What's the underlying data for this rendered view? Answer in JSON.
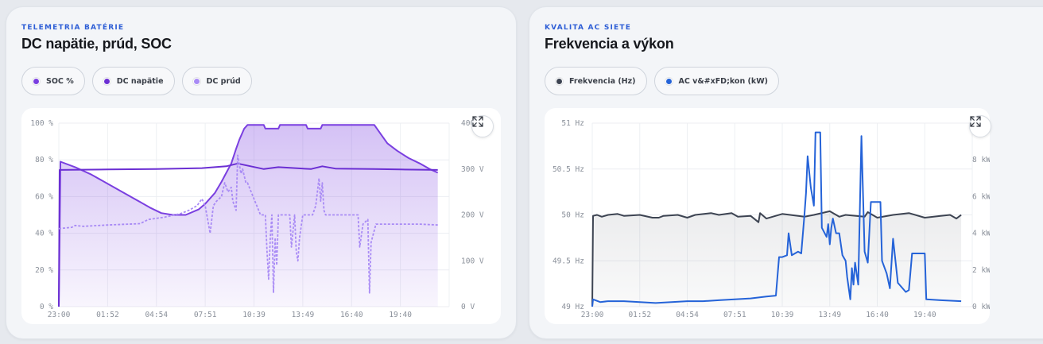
{
  "cards": [
    {
      "eyebrow": "TELEMETRIA BATÉRIE",
      "title": "DC napätie, prúd, SOC",
      "legend": [
        {
          "label": "SOC %",
          "color": "#7a3fe0"
        },
        {
          "label": "DC napätie",
          "color": "#6b2fd3"
        },
        {
          "label": "DC prúd",
          "color": "#a98bf5"
        }
      ]
    },
    {
      "eyebrow": "KVALITA AC SIETE",
      "title": "Frekvencia a výkon",
      "legend": [
        {
          "label": "Frekvencia (Hz)",
          "color": "#3d4452"
        },
        {
          "label": "AC v&#xFD;kon (kW)",
          "color": "#2563d8"
        }
      ]
    }
  ],
  "expand_icon": "expand-icon",
  "chart_data": [
    {
      "type": "line",
      "x_ticks": [
        "23:00",
        "01:52",
        "04:54",
        "07:51",
        "10:39",
        "13:49",
        "16:40",
        "19:40"
      ],
      "y_left_ticks": [
        "0 %",
        "20 %",
        "40 %",
        "60 %",
        "80 %",
        "100 %"
      ],
      "y_right_ticks": [
        "0 V",
        "100 V",
        "200 V",
        "300 V",
        "400 V"
      ],
      "ylim_left": [
        0,
        100
      ],
      "ylim_right": [
        0,
        400
      ],
      "xlim": [
        0,
        24
      ],
      "series": [
        {
          "name": "SOC %",
          "axis": "left",
          "style": "solid-fill",
          "color": "#7a3fe0",
          "points": [
            [
              0,
              0
            ],
            [
              0.1,
              79
            ],
            [
              1,
              76
            ],
            [
              2,
              72
            ],
            [
              3,
              67
            ],
            [
              4,
              62
            ],
            [
              5,
              57
            ],
            [
              5.6,
              54
            ],
            [
              6.3,
              51
            ],
            [
              7,
              50
            ],
            [
              7.8,
              50
            ],
            [
              8.6,
              53
            ],
            [
              9,
              56
            ],
            [
              9.6,
              62
            ],
            [
              10,
              68
            ],
            [
              10.3,
              73
            ],
            [
              10.6,
              78
            ],
            [
              10.9,
              86
            ],
            [
              11.1,
              91
            ],
            [
              11.4,
              97
            ],
            [
              11.6,
              99
            ],
            [
              12.6,
              99
            ],
            [
              12.7,
              97
            ],
            [
              13.5,
              97
            ],
            [
              13.6,
              99
            ],
            [
              15.2,
              99
            ],
            [
              15.3,
              97
            ],
            [
              16.1,
              97
            ],
            [
              16.2,
              99
            ],
            [
              19.4,
              99
            ],
            [
              19.8,
              94
            ],
            [
              20.2,
              89
            ],
            [
              20.8,
              85
            ],
            [
              21.5,
              81
            ],
            [
              22.2,
              78
            ],
            [
              22.8,
              75
            ],
            [
              23.3,
              73
            ]
          ]
        },
        {
          "name": "DC napätie",
          "axis": "right",
          "style": "solid",
          "color": "#6b2fd3",
          "points": [
            [
              0,
              0
            ],
            [
              0.05,
              298
            ],
            [
              3,
              299
            ],
            [
              6,
              300
            ],
            [
              8.8,
              302
            ],
            [
              10.3,
              306
            ],
            [
              11,
              312
            ],
            [
              12.6,
              300
            ],
            [
              13.5,
              304
            ],
            [
              15.5,
              300
            ],
            [
              16.2,
              306
            ],
            [
              17,
              301
            ],
            [
              19.4,
              300
            ],
            [
              21,
              299
            ],
            [
              23.3,
              298
            ]
          ]
        },
        {
          "name": "DC prúd",
          "axis": "right",
          "style": "dashed",
          "color": "#a98bf5",
          "points": [
            [
              0,
              170
            ],
            [
              0.8,
              173
            ],
            [
              1,
              177
            ],
            [
              1.5,
              175
            ],
            [
              3,
              178
            ],
            [
              5,
              181
            ],
            [
              5.5,
              190
            ],
            [
              6.5,
              195
            ],
            [
              7.5,
              203
            ],
            [
              8,
              210
            ],
            [
              8.5,
              220
            ],
            [
              8.8,
              235
            ],
            [
              9,
              220
            ],
            [
              9.3,
              160
            ],
            [
              9.5,
              220
            ],
            [
              9.7,
              230
            ],
            [
              10,
              240
            ],
            [
              10.2,
              270
            ],
            [
              10.4,
              250
            ],
            [
              10.6,
              260
            ],
            [
              10.7,
              230
            ],
            [
              10.9,
              210
            ],
            [
              11,
              330
            ],
            [
              11.2,
              290
            ],
            [
              11.3,
              300
            ],
            [
              11.5,
              270
            ],
            [
              11.6,
              270
            ],
            [
              12.4,
              200
            ],
            [
              12.7,
              200
            ],
            [
              12.8,
              120
            ],
            [
              12.9,
              60
            ],
            [
              13,
              150
            ],
            [
              13.1,
              200
            ],
            [
              13.2,
              30
            ],
            [
              13.3,
              150
            ],
            [
              13.4,
              90
            ],
            [
              13.5,
              200
            ],
            [
              14,
              200
            ],
            [
              14.2,
              200
            ],
            [
              14.3,
              130
            ],
            [
              14.5,
              200
            ],
            [
              14.6,
              120
            ],
            [
              14.7,
              100
            ],
            [
              14.8,
              150
            ],
            [
              15,
              200
            ],
            [
              15.6,
              200
            ],
            [
              15.8,
              220
            ],
            [
              16,
              280
            ],
            [
              16.1,
              230
            ],
            [
              16.2,
              270
            ],
            [
              16.3,
              210
            ],
            [
              16.4,
              200
            ],
            [
              18,
              200
            ],
            [
              18.4,
              200
            ],
            [
              18.5,
              130
            ],
            [
              18.7,
              180
            ],
            [
              19,
              190
            ],
            [
              19.1,
              30
            ],
            [
              19.2,
              140
            ],
            [
              19.5,
              180
            ],
            [
              21,
              180
            ],
            [
              22.2,
              180
            ],
            [
              23.3,
              178
            ]
          ]
        }
      ]
    },
    {
      "type": "line",
      "x_ticks": [
        "23:00",
        "01:52",
        "04:54",
        "07:51",
        "10:39",
        "13:49",
        "16:40",
        "19:40"
      ],
      "y_left_ticks": [
        "49 Hz",
        "49.5 Hz",
        "50 Hz",
        "50.5 Hz",
        "51 Hz"
      ],
      "y_right_ticks": [
        "0 kW",
        "2 kW",
        "4 kW",
        "6 kW",
        "8 kW",
        "10 kW"
      ],
      "ylim_left": [
        49,
        51
      ],
      "ylim_right": [
        0,
        10
      ],
      "xlim": [
        0,
        24
      ],
      "series": [
        {
          "name": "Frekvencia (Hz)",
          "axis": "left",
          "style": "solid-fill",
          "color": "#3d4452",
          "points": [
            [
              0,
              49
            ],
            [
              0.05,
              49.99
            ],
            [
              0.3,
              50
            ],
            [
              0.6,
              49.98
            ],
            [
              1,
              50
            ],
            [
              1.6,
              50.01
            ],
            [
              2,
              49.99
            ],
            [
              3,
              50
            ],
            [
              3.8,
              49.97
            ],
            [
              4.2,
              49.97
            ],
            [
              4.5,
              49.99
            ],
            [
              5.4,
              50
            ],
            [
              6,
              49.97
            ],
            [
              6.5,
              50
            ],
            [
              7.5,
              50.02
            ],
            [
              8,
              50
            ],
            [
              8.8,
              50.02
            ],
            [
              9.2,
              49.98
            ],
            [
              10,
              49.99
            ],
            [
              10.5,
              49.92
            ],
            [
              10.6,
              50.02
            ],
            [
              11,
              49.96
            ],
            [
              12,
              50.01
            ],
            [
              12.5,
              50
            ],
            [
              13.4,
              49.98
            ],
            [
              14,
              50
            ],
            [
              15,
              50.04
            ],
            [
              15.6,
              49.98
            ],
            [
              16,
              50
            ],
            [
              17.2,
              49.98
            ],
            [
              17.4,
              50.03
            ],
            [
              18,
              49.97
            ],
            [
              19,
              50
            ],
            [
              20,
              50.02
            ],
            [
              21,
              49.97
            ],
            [
              22,
              49.99
            ],
            [
              22.6,
              50
            ],
            [
              23,
              49.96
            ],
            [
              23.3,
              50
            ]
          ]
        },
        {
          "name": "AC v&#xFD;kon (kW)",
          "axis": "right",
          "style": "solid",
          "color": "#2563d8",
          "points": [
            [
              0,
              0
            ],
            [
              0.05,
              0.4
            ],
            [
              0.5,
              0.25
            ],
            [
              1,
              0.3
            ],
            [
              2,
              0.3
            ],
            [
              3,
              0.25
            ],
            [
              4,
              0.2
            ],
            [
              5,
              0.25
            ],
            [
              6,
              0.3
            ],
            [
              7,
              0.3
            ],
            [
              8,
              0.35
            ],
            [
              9,
              0.4
            ],
            [
              10,
              0.45
            ],
            [
              11,
              0.55
            ],
            [
              11.6,
              0.6
            ],
            [
              11.8,
              2.7
            ],
            [
              12,
              2.7
            ],
            [
              12.3,
              2.8
            ],
            [
              12.4,
              4
            ],
            [
              12.6,
              2.8
            ],
            [
              13,
              3
            ],
            [
              13.2,
              2.9
            ],
            [
              13.4,
              5
            ],
            [
              13.5,
              6.2
            ],
            [
              13.6,
              8.2
            ],
            [
              13.8,
              6.5
            ],
            [
              14,
              5.5
            ],
            [
              14.1,
              9.5
            ],
            [
              14.4,
              9.5
            ],
            [
              14.5,
              4.3
            ],
            [
              14.8,
              3.8
            ],
            [
              14.9,
              4.5
            ],
            [
              15,
              3.4
            ],
            [
              15.1,
              4.3
            ],
            [
              15.2,
              4.8
            ],
            [
              15.4,
              4.0
            ],
            [
              15.6,
              4.0
            ],
            [
              15.8,
              2.8
            ],
            [
              16,
              2.5
            ],
            [
              16.1,
              1.6
            ],
            [
              16.3,
              0.4
            ],
            [
              16.4,
              2.1
            ],
            [
              16.5,
              1.2
            ],
            [
              16.6,
              2.4
            ],
            [
              16.8,
              1.2
            ],
            [
              17,
              9.3
            ],
            [
              17.2,
              3
            ],
            [
              17.4,
              2.4
            ],
            [
              17.6,
              5.7
            ],
            [
              17.8,
              5.7
            ],
            [
              18.2,
              5.7
            ],
            [
              18.3,
              2.5
            ],
            [
              18.6,
              1.8
            ],
            [
              18.8,
              1.0
            ],
            [
              19,
              3.7
            ],
            [
              19.3,
              1.3
            ],
            [
              19.8,
              0.8
            ],
            [
              20,
              0.9
            ],
            [
              20.2,
              2.9
            ],
            [
              21,
              2.9
            ],
            [
              21.1,
              0.4
            ],
            [
              22,
              0.35
            ],
            [
              23.3,
              0.3
            ]
          ]
        }
      ]
    }
  ]
}
